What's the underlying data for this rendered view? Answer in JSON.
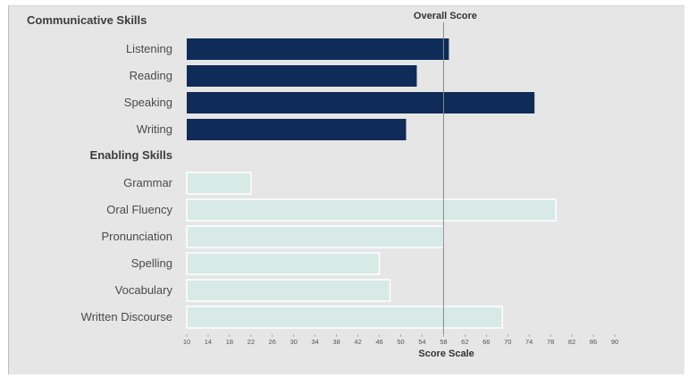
{
  "chart_data": {
    "type": "bar",
    "orientation": "horizontal",
    "sections": [
      {
        "label": "Communicative Skills",
        "style": "communicative",
        "items": [
          {
            "label": "Listening",
            "value": 59
          },
          {
            "label": "Reading",
            "value": 53
          },
          {
            "label": "Speaking",
            "value": 75
          },
          {
            "label": "Writing",
            "value": 51
          }
        ]
      },
      {
        "label": "Enabling Skills",
        "style": "enabling",
        "items": [
          {
            "label": "Grammar",
            "value": 22
          },
          {
            "label": "Oral Fluency",
            "value": 79
          },
          {
            "label": "Pronunciation",
            "value": 58
          },
          {
            "label": "Spelling",
            "value": 46
          },
          {
            "label": "Vocabulary",
            "value": 48
          },
          {
            "label": "Written Discourse",
            "value": 69
          }
        ]
      }
    ],
    "reference_line": {
      "label": "Overall Score",
      "value": 58
    },
    "xlabel": "Score Scale",
    "xlim": [
      10,
      90
    ],
    "xticks": [
      10,
      14,
      18,
      22,
      26,
      30,
      34,
      38,
      42,
      46,
      50,
      54,
      58,
      62,
      66,
      70,
      74,
      78,
      82,
      86,
      90
    ],
    "colors": {
      "communicative": "#0e2c57",
      "enabling_fill": "#d8eae6",
      "enabling_stroke": "#ffffff",
      "reference_line": "#8a8a8a",
      "background": "#e6e6e6"
    },
    "grid": false
  }
}
